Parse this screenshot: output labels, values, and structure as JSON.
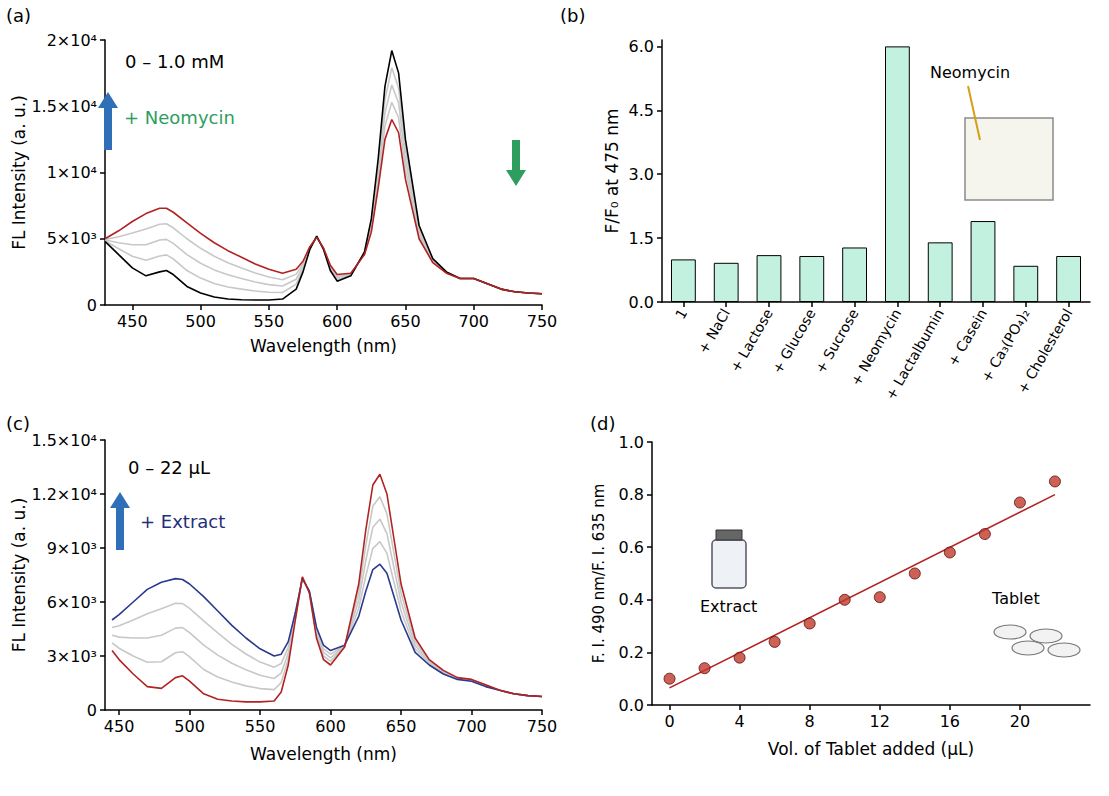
{
  "chart_data": [
    {
      "panel": "(a)",
      "type": "line",
      "x_label": "Wavelength (nm)",
      "y_label": "FL Intensity (a. u.)",
      "xlim": [
        430,
        750
      ],
      "xticks": [
        450,
        500,
        550,
        600,
        650,
        700,
        750
      ],
      "ylim": [
        0,
        20000
      ],
      "yticks": [
        0,
        {
          "value": 5000,
          "label": "5×10³"
        },
        {
          "value": 10000,
          "label": "1×10⁴"
        },
        {
          "value": 15000,
          "label": "1.5×10⁴"
        },
        {
          "value": 20000,
          "label": "2×10⁴"
        }
      ],
      "grid": false,
      "annotations": [
        {
          "text": "0 – 1.0 mM",
          "color": "#000000"
        },
        {
          "text": "+ Neomycin",
          "color": "#2e9e5e"
        }
      ],
      "x": [
        430,
        440,
        450,
        460,
        470,
        475,
        480,
        490,
        500,
        510,
        520,
        530,
        540,
        550,
        560,
        570,
        575,
        580,
        585,
        590,
        595,
        600,
        610,
        620,
        625,
        630,
        635,
        640,
        645,
        650,
        660,
        670,
        680,
        690,
        700,
        710,
        720,
        730,
        740,
        750
      ],
      "series": [
        {
          "color": "#c8c8c8",
          "values": [
            4850,
            4250,
            3680,
            3380,
            3700,
            3780,
            3480,
            2600,
            2030,
            1630,
            1360,
            1200,
            1060,
            960,
            940,
            1580,
            2700,
            4250,
            5180,
            4230,
            2700,
            1930,
            2250,
            3950,
            6250,
            10450,
            15500,
            17900,
            16380,
            11750,
            5750,
            3430,
            2480,
            2000,
            2000,
            1600,
            1200,
            1000,
            900,
            850
          ]
        },
        {
          "color": "#c8c8c8",
          "values": [
            4900,
            4700,
            4550,
            4550,
            4900,
            4950,
            4650,
            3800,
            3150,
            2650,
            2280,
            2000,
            1740,
            1540,
            1430,
            1950,
            2900,
            4300,
            5150,
            4250,
            2800,
            2050,
            2300,
            3900,
            6000,
            9900,
            14500,
            16600,
            15250,
            11000,
            5500,
            3350,
            2450,
            2000,
            2000,
            1600,
            1200,
            1000,
            900,
            850
          ]
        },
        {
          "color": "#c8c8c8",
          "values": [
            4950,
            5150,
            5430,
            5730,
            6100,
            6130,
            5830,
            5000,
            4280,
            3680,
            3190,
            2800,
            2420,
            2120,
            1910,
            2330,
            3100,
            4350,
            5130,
            4280,
            2900,
            2180,
            2350,
            3850,
            5750,
            9350,
            13500,
            15300,
            14130,
            10250,
            5250,
            3280,
            2430,
            2000,
            2000,
            1600,
            1200,
            1000,
            900,
            850
          ]
        },
        {
          "color": "#000000",
          "values": [
            4800,
            3800,
            2800,
            2200,
            2500,
            2600,
            2300,
            1400,
            900,
            600,
            450,
            400,
            380,
            380,
            450,
            1200,
            2500,
            4200,
            5200,
            4200,
            2600,
            1800,
            2200,
            4000,
            6500,
            11000,
            16500,
            19200,
            17500,
            12500,
            6000,
            3500,
            2500,
            2000,
            2000,
            1600,
            1200,
            1000,
            900,
            850
          ]
        },
        {
          "color": "#b22222",
          "values": [
            5000,
            5600,
            6300,
            6900,
            7300,
            7300,
            7000,
            6200,
            5400,
            4700,
            4100,
            3600,
            3100,
            2700,
            2400,
            2700,
            3300,
            4400,
            5100,
            4300,
            3000,
            2300,
            2400,
            3800,
            5500,
            8800,
            12500,
            14000,
            13000,
            9500,
            5000,
            3200,
            2400,
            2000,
            2000,
            1600,
            1200,
            1000,
            900,
            850
          ]
        }
      ]
    },
    {
      "panel": "(b)",
      "type": "bar",
      "y_label": "F/F₀ at 475 nm",
      "categories": [
        "1",
        "+ NaCl",
        "+ Lactose",
        "+ Glucose",
        "+ Sucrose",
        "+ Neomycin",
        "+ Lactalbumin",
        "+ Casein",
        "+ Ca₃(PO₄)₂",
        "+ Cholesterol"
      ],
      "values": [
        1.0,
        0.92,
        1.1,
        1.08,
        1.28,
        6.0,
        1.4,
        1.9,
        0.85,
        1.08
      ],
      "color": "#c2f2df",
      "ylim": [
        0,
        6.15
      ],
      "yticks": [
        {
          "value": 0,
          "label": "0.0"
        },
        1.5,
        {
          "value": 3,
          "label": "3.0"
        },
        4.5,
        {
          "value": 6,
          "label": "6.0"
        }
      ],
      "grid": false,
      "annotations": [
        {
          "text": "Neomycin",
          "color": "#000000"
        }
      ]
    },
    {
      "panel": "(c)",
      "type": "line",
      "x_label": "Wavelength (nm)",
      "y_label": "FL Intensity (a. u.)",
      "xlim": [
        440,
        750
      ],
      "xticks": [
        450,
        500,
        550,
        600,
        650,
        700,
        750
      ],
      "ylim": [
        0,
        15000
      ],
      "yticks": [
        0,
        {
          "value": 3000,
          "label": "3×10³"
        },
        {
          "value": 6000,
          "label": "6×10³"
        },
        {
          "value": 9000,
          "label": "9×10³"
        },
        {
          "value": 12000,
          "label": "1.2×10⁴"
        },
        {
          "value": 15000,
          "label": "1.5×10⁴"
        }
      ],
      "grid": false,
      "annotations": [
        {
          "text": "0 – 22 μL",
          "color": "#000000"
        },
        {
          "text": "+ Extract",
          "color": "#1f2f7a"
        }
      ],
      "x": [
        445,
        450,
        460,
        470,
        480,
        490,
        495,
        500,
        510,
        520,
        530,
        540,
        550,
        560,
        565,
        570,
        575,
        580,
        585,
        590,
        595,
        600,
        610,
        620,
        625,
        630,
        635,
        640,
        645,
        650,
        660,
        670,
        680,
        690,
        700,
        710,
        720,
        730,
        740,
        750
      ],
      "series": [
        {
          "color": "#c8c8c8",
          "values": [
            3730,
            3430,
            3000,
            2650,
            2680,
            3180,
            3240,
            2950,
            2250,
            1830,
            1550,
            1340,
            1190,
            1130,
            1530,
            2830,
            5100,
            7380,
            6530,
            4150,
            3000,
            2700,
            3530,
            6550,
            9150,
            11330,
            11850,
            10900,
            8700,
            6500,
            3800,
            2730,
            2150,
            1780,
            1680,
            1380,
            1100,
            900,
            800,
            750
          ]
        },
        {
          "color": "#c8c8c8",
          "values": [
            4150,
            4050,
            4000,
            4000,
            4150,
            4550,
            4580,
            4300,
            3600,
            3050,
            2600,
            2230,
            1930,
            1750,
            2050,
            3150,
            5200,
            7350,
            6550,
            4300,
            3200,
            2900,
            3550,
            6100,
            8300,
            10150,
            10600,
            9800,
            7900,
            6000,
            3600,
            2650,
            2100,
            1750,
            1650,
            1350,
            1100,
            900,
            800,
            750
          ]
        },
        {
          "color": "#c8c8c8",
          "values": [
            4580,
            4680,
            5000,
            5350,
            5630,
            5930,
            5910,
            5650,
            4950,
            4280,
            3650,
            3110,
            2660,
            2380,
            2580,
            3480,
            5300,
            7330,
            6580,
            4450,
            3400,
            3100,
            3580,
            5650,
            7450,
            8980,
            9350,
            8700,
            7100,
            5500,
            3400,
            2580,
            2050,
            1730,
            1630,
            1330,
            1100,
            900,
            800,
            750
          ]
        },
        {
          "color": "#2b3a8f",
          "values": [
            5000,
            5300,
            6000,
            6700,
            7100,
            7300,
            7250,
            7000,
            6300,
            5500,
            4700,
            4000,
            3400,
            3000,
            3100,
            3800,
            5400,
            7300,
            6600,
            4600,
            3600,
            3300,
            3600,
            5200,
            6600,
            7800,
            8100,
            7600,
            6300,
            5000,
            3200,
            2500,
            2000,
            1700,
            1600,
            1300,
            1100,
            900,
            800,
            750
          ]
        },
        {
          "color": "#b22222",
          "values": [
            3300,
            2800,
            2000,
            1300,
            1200,
            1800,
            1900,
            1600,
            900,
            600,
            500,
            450,
            450,
            500,
            1000,
            2500,
            5000,
            7400,
            6500,
            4000,
            2800,
            2500,
            3500,
            7000,
            10000,
            12500,
            13100,
            12000,
            9500,
            7000,
            4000,
            2800,
            2200,
            1800,
            1700,
            1400,
            1100,
            900,
            800,
            750
          ]
        }
      ]
    },
    {
      "panel": "(d)",
      "type": "scatter",
      "x_label": "Vol. of Tablet added (μL)",
      "y_label": "F. I. 490 nm/F. I. 635 nm",
      "xlim": [
        -1,
        24
      ],
      "xticks": [
        0,
        4,
        8,
        12,
        16,
        20
      ],
      "ylim": [
        0,
        1.0
      ],
      "yticks": [
        {
          "value": 0,
          "label": "0.0"
        },
        0.2,
        0.4,
        0.6,
        0.8,
        {
          "value": 1.0,
          "label": "1.0"
        }
      ],
      "grid": false,
      "annotations": [
        {
          "text": "Extract",
          "color": "#000000"
        },
        {
          "text": "Tablet",
          "color": "#000000"
        }
      ],
      "series": [
        {
          "type": "scatter",
          "color": "#c0392b",
          "marker": "circle",
          "x": [
            0,
            2,
            4,
            6,
            8,
            10,
            12,
            14,
            16,
            18,
            20,
            22
          ],
          "values": [
            0.1,
            0.14,
            0.18,
            0.24,
            0.31,
            0.4,
            0.41,
            0.5,
            0.58,
            0.65,
            0.77,
            0.85
          ]
        },
        {
          "type": "line",
          "color": "#b22222",
          "x": [
            0,
            22
          ],
          "values": [
            0.065,
            0.8
          ]
        }
      ]
    }
  ]
}
